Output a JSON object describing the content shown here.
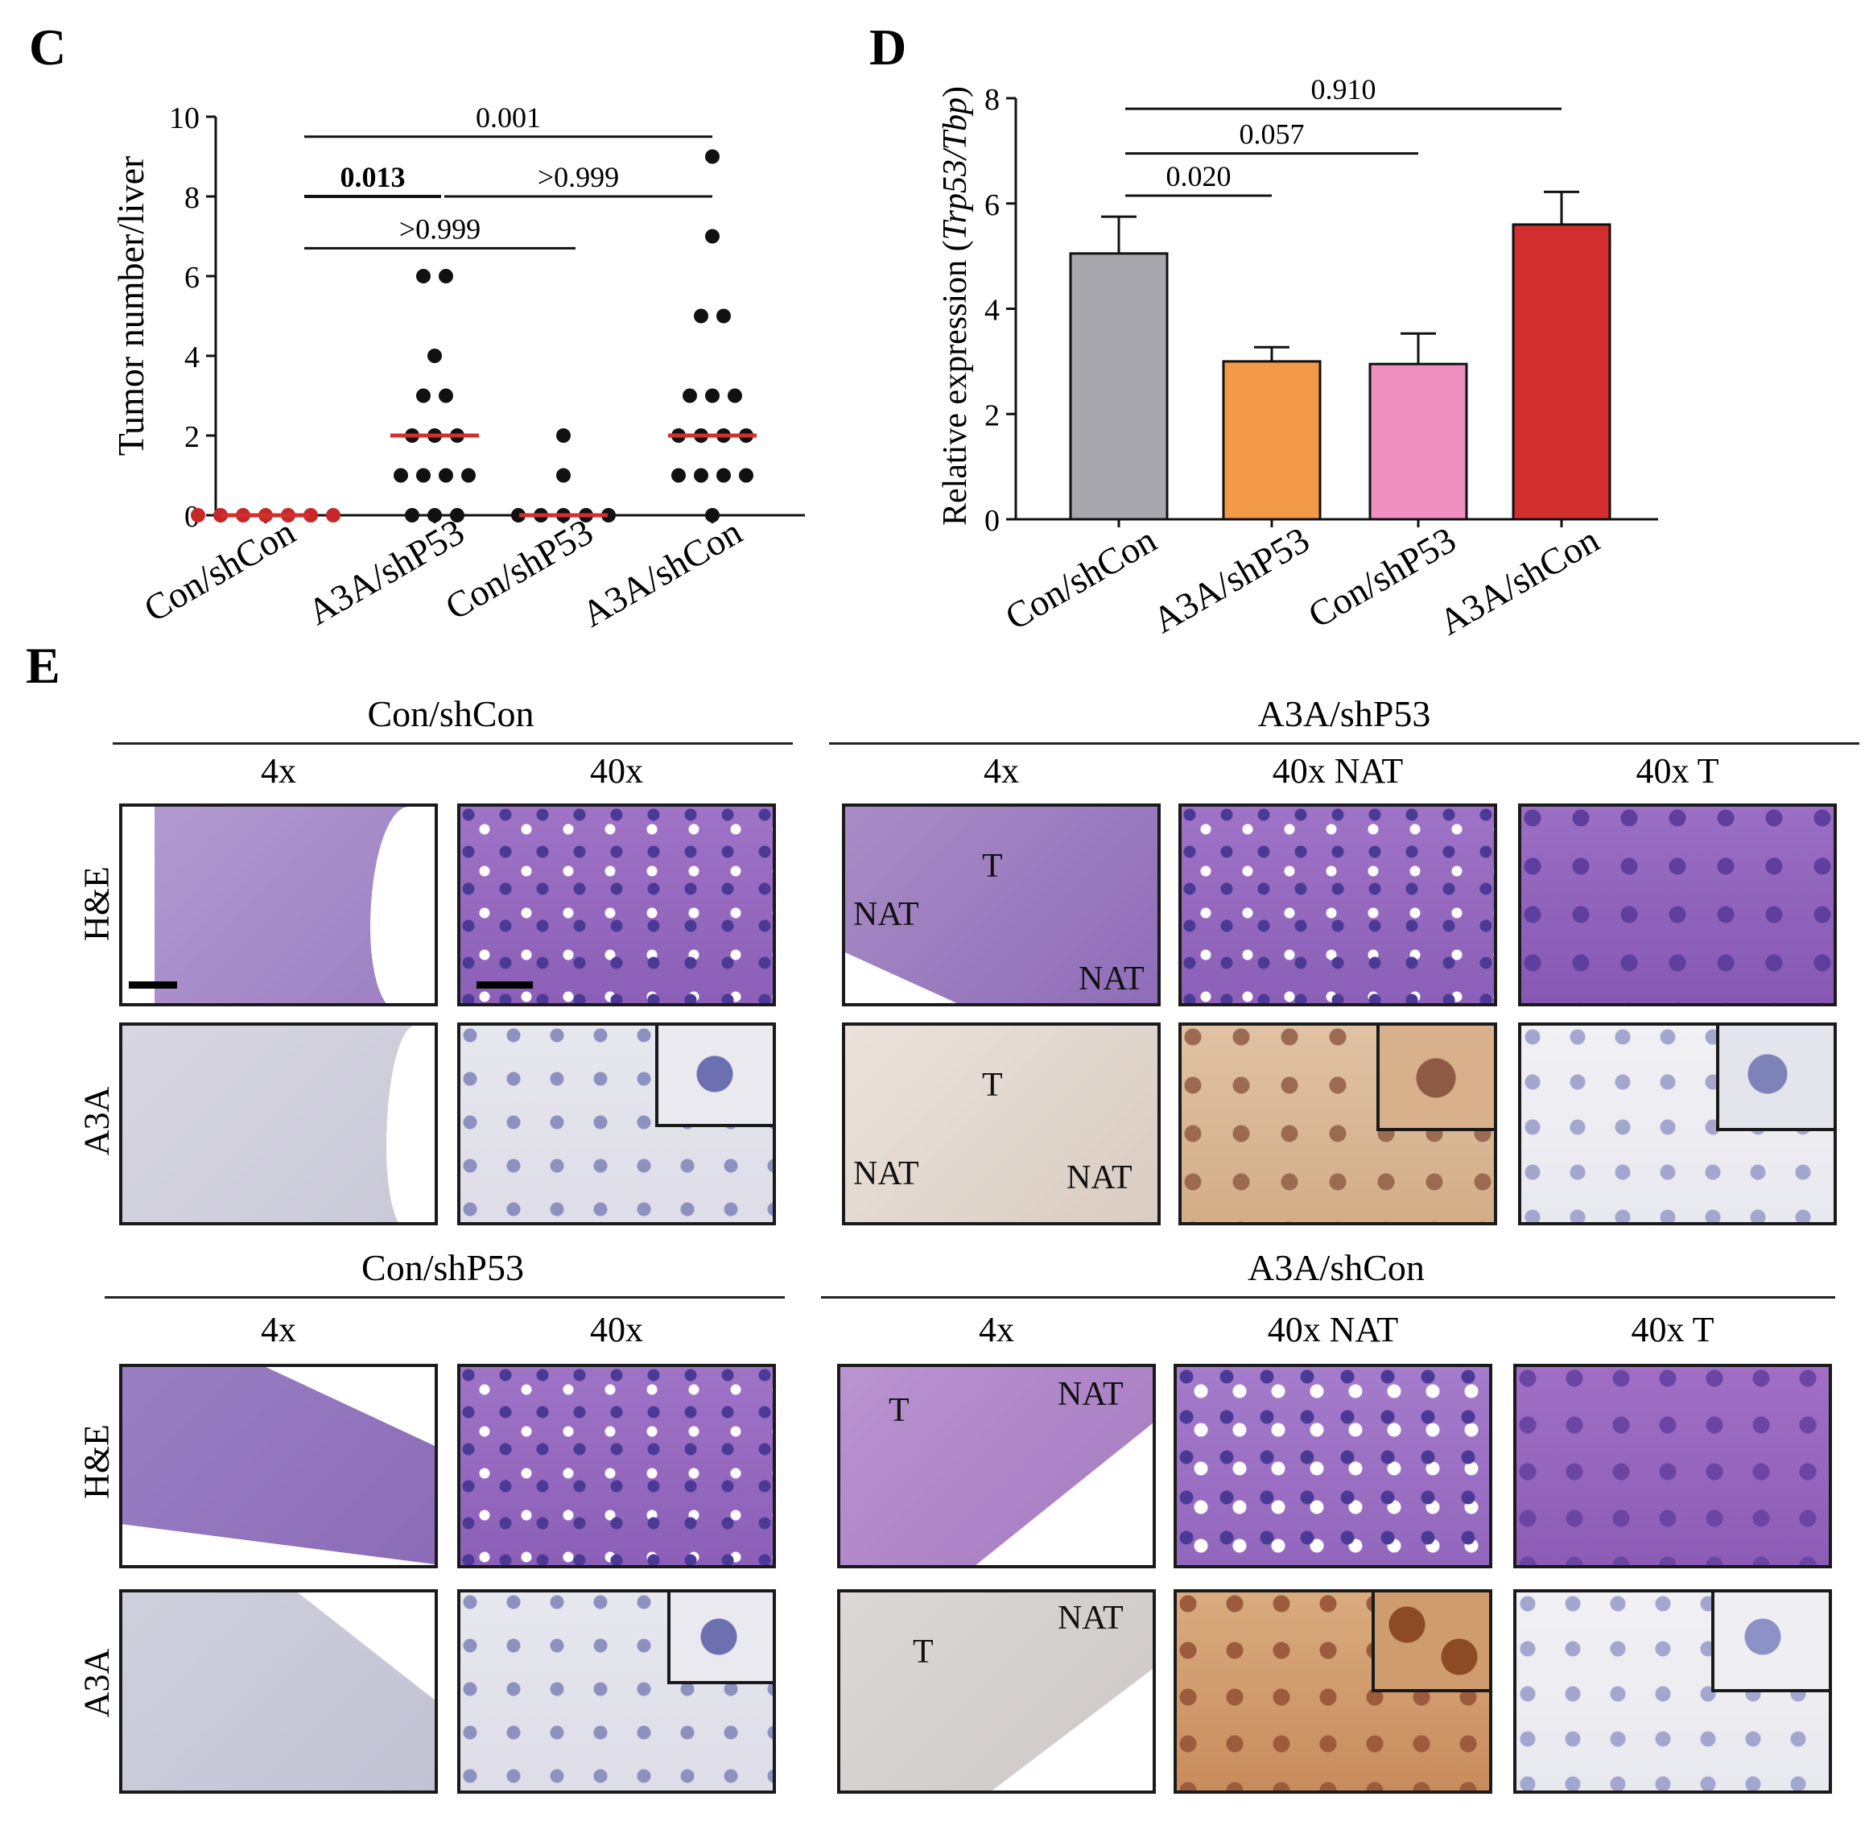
{
  "panels": {
    "c": "C",
    "d": "D",
    "e": "E"
  },
  "chart_data": [
    {
      "type": "scatter",
      "ylabel": "Tumor number/liver",
      "ylim": [
        0,
        10
      ],
      "yticks": [
        "0",
        "2",
        "4",
        "6",
        "8",
        "10"
      ],
      "categories": [
        "Con/shCon",
        "A3A/shP53",
        "Con/shP53",
        "A3A/shCon"
      ],
      "points": [
        [
          0,
          0,
          0,
          0,
          0,
          0,
          0
        ],
        [
          0,
          0,
          0,
          1,
          1,
          1,
          1,
          2,
          2,
          2,
          3,
          3,
          4,
          6,
          6
        ],
        [
          0,
          0,
          0,
          0,
          0,
          1,
          2
        ],
        [
          0,
          1,
          1,
          1,
          1,
          2,
          2,
          2,
          2,
          3,
          3,
          3,
          5,
          5,
          7,
          9
        ]
      ],
      "medians": [
        0,
        2,
        0,
        2
      ],
      "comparisons": [
        {
          "from": 0,
          "to": 3,
          "label": "0.001"
        },
        {
          "from": 0,
          "to": 1,
          "label": "0.013"
        },
        {
          "from": 1,
          "to": 3,
          "label": ">0.999"
        },
        {
          "from": 0,
          "to": 2,
          "label": ">0.999"
        }
      ],
      "colors": {
        "points": "#111111",
        "points_zero_group": "#c62828",
        "median": "#d32f2f"
      }
    },
    {
      "type": "bar",
      "ylabel_pre": "Relative expression (",
      "ylabel_italic": "Trp53/Tbp",
      "ylabel_post": ")",
      "ylim": [
        0,
        8
      ],
      "yticks": [
        "0",
        "2",
        "4",
        "6",
        "8"
      ],
      "categories": [
        "Con/shCon",
        "A3A/shP53",
        "Con/shP53",
        "A3A/shCon"
      ],
      "values": [
        5.05,
        3.0,
        2.95,
        5.6
      ],
      "errors": [
        0.7,
        0.27,
        0.58,
        0.62
      ],
      "colors": [
        "#a7a7ad",
        "#f39a49",
        "#ef8fbf",
        "#d42f2f"
      ],
      "comparisons": [
        {
          "from": 0,
          "to": 3,
          "label": "0.910"
        },
        {
          "from": 0,
          "to": 2,
          "label": "0.057"
        },
        {
          "from": 0,
          "to": 1,
          "label": "0.020"
        }
      ]
    }
  ],
  "histology": {
    "groups": {
      "con_shcon": "Con/shCon",
      "a3a_shp53": "A3A/shP53",
      "con_shp53": "Con/shP53",
      "a3a_shcon": "A3A/shCon"
    },
    "columns": {
      "low": "4x",
      "high": "40x",
      "nat": "40x NAT",
      "t": "40x T"
    },
    "rows": {
      "he": "H&E",
      "a3a": "A3A"
    },
    "regions": {
      "tumor": "T",
      "nat": "NAT"
    }
  }
}
